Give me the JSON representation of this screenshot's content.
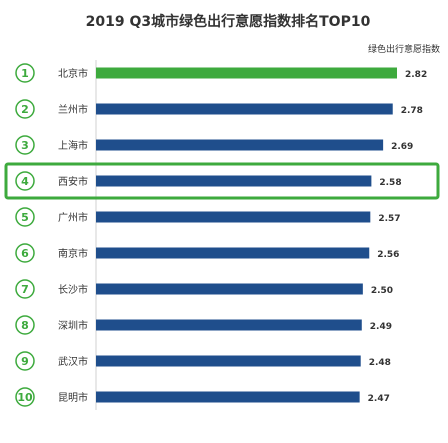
{
  "chart_data": {
    "type": "bar",
    "orientation": "horizontal",
    "title": "2019 Q3城市绿色出行意愿指数排名TOP10",
    "legend_label": "绿色出行意愿指数",
    "rank_labels": [
      "①",
      "②",
      "③",
      "④",
      "⑤",
      "⑥",
      "⑦",
      "⑧",
      "⑨",
      "⑩"
    ],
    "categories": [
      "北京市",
      "兰州市",
      "上海市",
      "西安市",
      "广州市",
      "南京市",
      "长沙市",
      "深圳市",
      "武汉市",
      "昆明市"
    ],
    "values": [
      2.82,
      2.78,
      2.69,
      2.58,
      2.57,
      2.56,
      2.5,
      2.49,
      2.48,
      2.47
    ],
    "value_labels": [
      "2.82",
      "2.78",
      "2.69",
      "2.58",
      "2.57",
      "2.56",
      "2.50",
      "2.49",
      "2.48",
      "2.47"
    ],
    "highlighted_rank": 4,
    "colors": {
      "bar_default": "#1f4e8c",
      "bar_top": "#3daa3d",
      "rank_circle": "#3daa3d",
      "highlight_box": "#3daa3d",
      "text": "#333333"
    }
  }
}
